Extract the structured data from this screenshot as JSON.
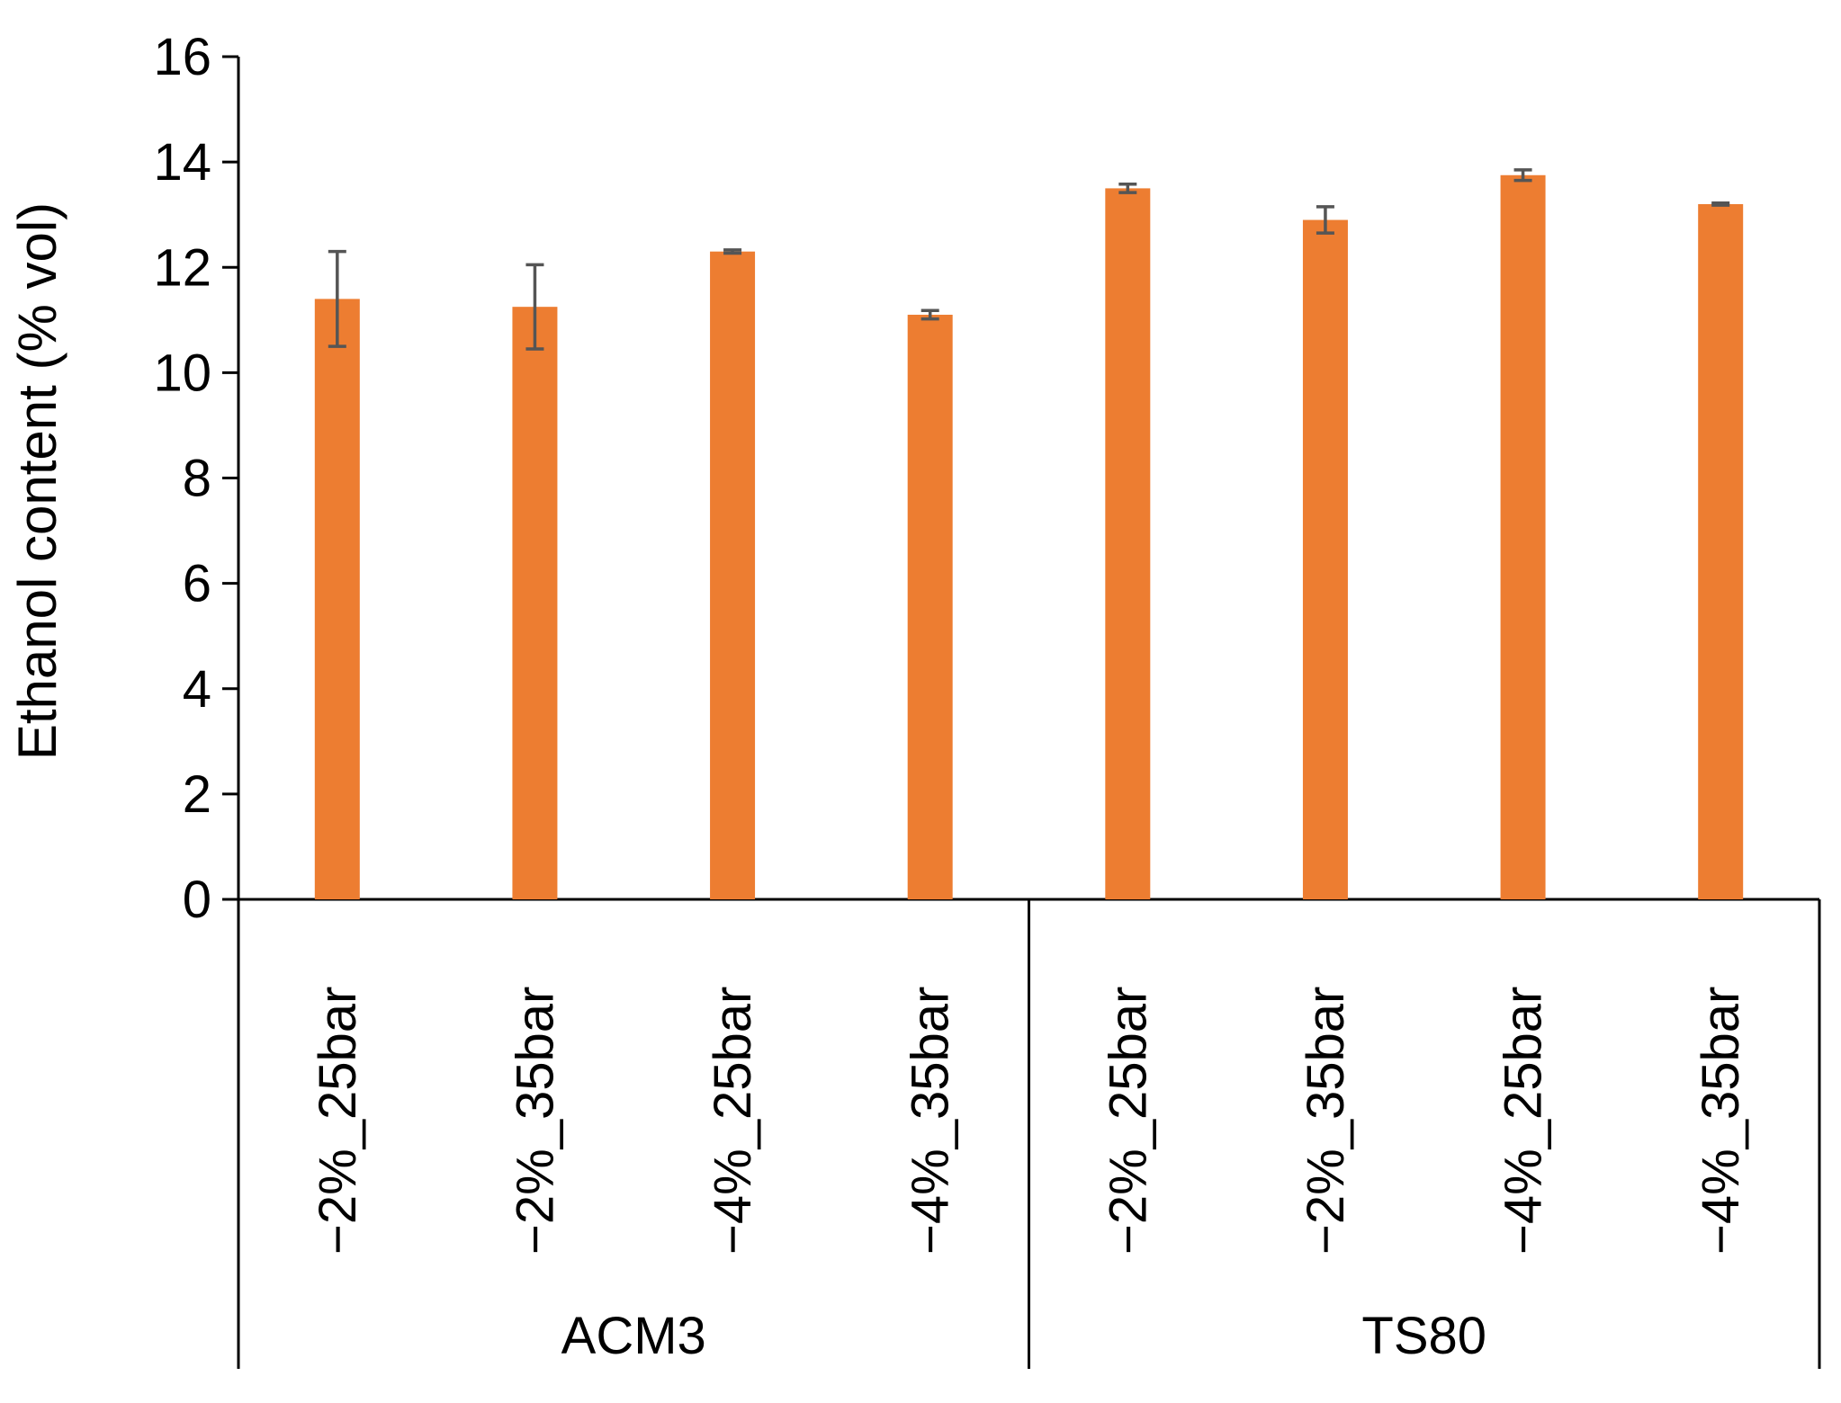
{
  "chart_data": {
    "type": "bar",
    "title": "",
    "ylabel": "Ethanol content (% vol)",
    "xlabel": "",
    "ylim": [
      0,
      16
    ],
    "yticks": [
      0,
      2,
      4,
      6,
      8,
      10,
      12,
      14,
      16
    ],
    "groups": [
      {
        "label": "ACM3",
        "categories": [
          "−2%_25bar",
          "−2%_35bar",
          "−4%_25bar",
          "−4%_35bar"
        ],
        "values": [
          11.4,
          11.25,
          12.3,
          11.1
        ],
        "errors": [
          0.9,
          0.8,
          0.03,
          0.08
        ]
      },
      {
        "label": "TS80",
        "categories": [
          "−2%_25bar",
          "−2%_35bar",
          "−4%_25bar",
          "−4%_35bar"
        ],
        "values": [
          13.5,
          12.9,
          13.75,
          13.2
        ],
        "errors": [
          0.08,
          0.25,
          0.1,
          0.02
        ]
      }
    ],
    "bar_color": "#ED7D31",
    "errorbar_color": "#555555",
    "grid": false,
    "legend": "none"
  }
}
